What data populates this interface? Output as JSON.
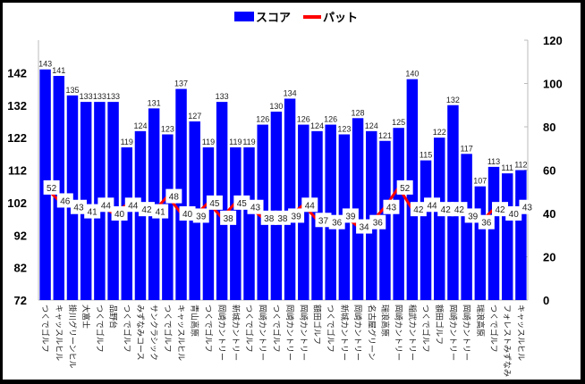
{
  "chart_data": {
    "type": "bar",
    "title": "",
    "legend": {
      "position": "top",
      "entries": [
        "スコア",
        "パット"
      ]
    },
    "categories": [
      "つくでゴルフ",
      "キャッスルヒル",
      "掛川グリーンヒル",
      "大富士",
      "つくでゴルフ",
      "品野台",
      "つくでゴルフ",
      "みずなみコース",
      "サンクラシック",
      "つくでゴルフ",
      "キャッスルヒル",
      "青山高原",
      "つくでゴルフ",
      "岡崎カントリー",
      "新城カントリー",
      "つくでゴルフ",
      "岡崎カントリー",
      "つくでゴルフ",
      "岡崎カントリー",
      "岡崎カントリー",
      "額田ゴルフ",
      "つくでゴルフ",
      "新城カントリー",
      "岡崎カントリー",
      "名古屋グリーン",
      "瑞浪高原",
      "岡崎カントリー",
      "稲武カントリー",
      "つくでゴルフ",
      "額田ゴルフ",
      "岡崎カントリー",
      "岡崎カントリー",
      "瑞浪高原",
      "つくでゴルフ",
      "フォレストみずなみ",
      "キャッスルヒル"
    ],
    "series": [
      {
        "name": "スコア",
        "type": "bar",
        "axis": "left",
        "color": "#0000FF",
        "values": [
          143,
          141,
          135,
          133,
          133,
          133,
          119,
          124,
          131,
          123,
          137,
          127,
          119,
          133,
          119,
          119,
          126,
          130,
          134,
          126,
          124,
          126,
          123,
          128,
          124,
          121,
          125,
          140,
          115,
          122,
          132,
          117,
          107,
          113,
          111,
          112
        ]
      },
      {
        "name": "パット",
        "type": "line",
        "axis": "right",
        "color": "#FF0000",
        "values": [
          52,
          46,
          43,
          41,
          44,
          40,
          44,
          42,
          41,
          48,
          40,
          39,
          45,
          38,
          45,
          43,
          38,
          38,
          39,
          44,
          37,
          36,
          39,
          34,
          36,
          43,
          52,
          42,
          44,
          42,
          42,
          39,
          36,
          42,
          40,
          43
        ]
      }
    ],
    "y_left": {
      "range": [
        72,
        152
      ],
      "ticks": [
        72,
        82,
        92,
        102,
        112,
        122,
        132,
        142
      ]
    },
    "y_right": {
      "range": [
        0,
        120
      ],
      "ticks": [
        0,
        20,
        40,
        60,
        80,
        100,
        120
      ]
    },
    "grid": false
  }
}
